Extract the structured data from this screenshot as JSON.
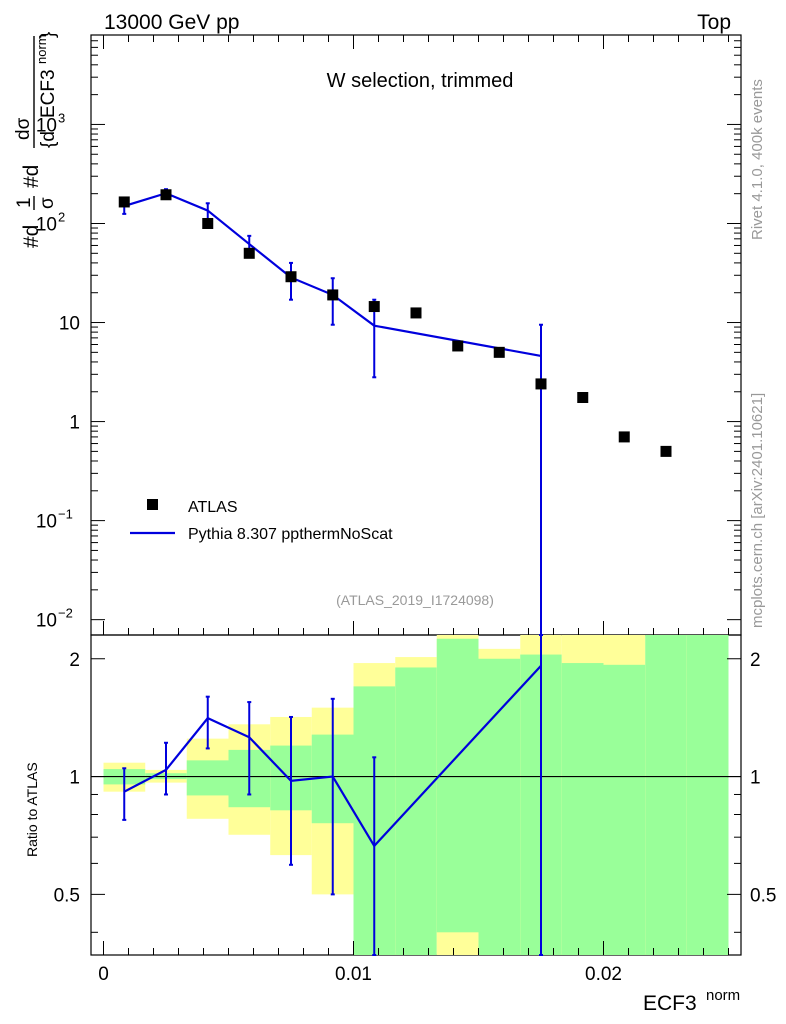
{
  "header": {
    "energy_label": "13000 GeV pp",
    "process_label": "Top"
  },
  "plot_title": "W selection, trimmed",
  "analysis_id": "(ATLAS_2019_I1724098)",
  "side_text": {
    "rivet": "Rivet 4.1.0,  400k events",
    "mcplots": "mcplots.cern.ch [arXiv:2401.10621]"
  },
  "y_axis_label": {
    "hash_d": "#d",
    "one": "1",
    "sigma": "σ",
    "dsigma": "dσ",
    "brace_d": "{d",
    "ecf3": "ECF3",
    "norm": "norm",
    "close_brace": "}"
  },
  "ratio_ylabel": "Ratio to ATLAS",
  "x_axis_label": {
    "main": "ECF3",
    "sup": "norm"
  },
  "colors": {
    "data_marker": "#000000",
    "mc_line": "#0000dd",
    "band_2sigma": "#ffff99",
    "band_1sigma": "#99ff99"
  },
  "chart_data": {
    "type": "scatter",
    "xlabel": "ECF3^norm",
    "xlim": [
      -0.0005,
      0.0255
    ],
    "main_panel": {
      "y_scale": "log",
      "ylim": [
        0.007,
        8000
      ],
      "y_ticks": [
        {
          "value": 0.01,
          "base": "10",
          "exp": "−2"
        },
        {
          "value": 0.1,
          "base": "10",
          "exp": "−1"
        },
        {
          "value": 1,
          "base": "1",
          "exp": ""
        },
        {
          "value": 10,
          "base": "10",
          "exp": ""
        },
        {
          "value": 100,
          "base": "10",
          "exp": "2"
        },
        {
          "value": 1000,
          "base": "10",
          "exp": "3"
        }
      ],
      "legend": [
        "ATLAS",
        "Pythia 8.307 ppthermNoScat"
      ],
      "legend_position": "bottom-left"
    },
    "ratio_panel": {
      "ylim": [
        0.35,
        2.3
      ],
      "reference_line": 1,
      "y_ticks": [
        {
          "value": 0.5,
          "label": "0.5"
        },
        {
          "value": 1,
          "label": "1"
        },
        {
          "value": 2,
          "label": "2"
        }
      ]
    },
    "x_ticks": [
      {
        "value": 0,
        "label": "0"
      },
      {
        "value": 0.01,
        "label": "0.01"
      },
      {
        "value": 0.02,
        "label": "0.02"
      }
    ],
    "bin_edges": [
      0.0,
      0.00167,
      0.00333,
      0.005,
      0.00667,
      0.00833,
      0.01,
      0.01167,
      0.01333,
      0.015,
      0.01667,
      0.01833,
      0.02,
      0.02167,
      0.02333,
      0.025
    ],
    "series": [
      {
        "name": "ATLAS",
        "x": [
          0.00083,
          0.0025,
          0.00417,
          0.00583,
          0.0075,
          0.00917,
          0.01083,
          0.0125,
          0.01417,
          0.01583,
          0.0175,
          0.01917,
          0.02083,
          0.0225
        ],
        "y": [
          165,
          195,
          100,
          50,
          29,
          19,
          14.5,
          12.5,
          5.8,
          5.0,
          2.4,
          1.75,
          0.7,
          0.5
        ]
      },
      {
        "name": "Pythia 8.307 ppthermNoScat",
        "x": [
          0.00083,
          0.0025,
          0.00417,
          0.00583,
          0.0075,
          0.00917,
          0.01083,
          0.0175
        ],
        "y": [
          150,
          202,
          135,
          62,
          28.5,
          19,
          9.3,
          4.6
        ],
        "y_err_low": [
          125,
          182,
          110,
          50,
          17,
          9.5,
          2.8,
          0.001
        ],
        "y_err_high": [
          177,
          222,
          160,
          75,
          40,
          28,
          17,
          9.5
        ],
        "ratio": [
          0.915,
          1.04,
          1.41,
          1.26,
          0.975,
          1.0,
          0.665,
          1.92
        ],
        "ratio_err_low": [
          0.775,
          0.9,
          1.18,
          0.9,
          0.595,
          0.5,
          0.2,
          0.0
        ],
        "ratio_err_high": [
          1.05,
          1.22,
          1.6,
          1.55,
          1.42,
          1.58,
          1.12,
          3.0
        ]
      }
    ],
    "uncertainty_bands": {
      "band_1sigma_low": [
        0.955,
        0.985,
        0.895,
        0.835,
        0.82,
        0.76,
        0.35,
        0.35,
        0.4,
        0.35,
        0.35,
        0.35,
        0.35,
        0.35,
        0.35
      ],
      "band_1sigma_high": [
        1.045,
        1.02,
        1.1,
        1.17,
        1.2,
        1.28,
        1.7,
        1.9,
        2.25,
        2.0,
        2.05,
        1.95,
        1.93,
        2.3,
        2.3
      ],
      "band_2sigma_low": [
        0.915,
        0.965,
        0.78,
        0.71,
        0.63,
        0.5,
        0.35,
        0.35,
        0.35,
        0.35,
        0.35,
        0.35,
        0.35,
        0.35,
        0.35
      ],
      "band_2sigma_high": [
        1.085,
        1.04,
        1.25,
        1.36,
        1.42,
        1.5,
        1.95,
        2.02,
        2.3,
        2.12,
        2.3,
        2.3,
        2.3,
        2.3,
        2.3
      ]
    }
  }
}
